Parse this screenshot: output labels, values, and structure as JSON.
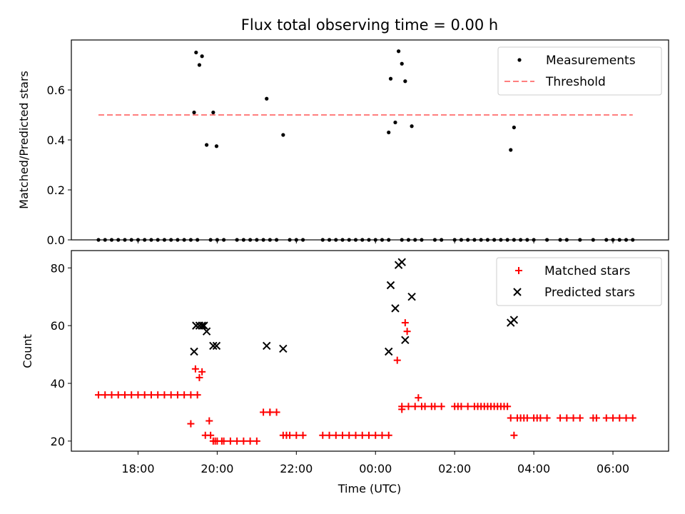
{
  "colors": {
    "measurements": "#000000",
    "threshold": "#ff7f7f",
    "matched": "#ff0000",
    "predicted": "#000000"
  },
  "chart_data": [
    {
      "type": "scatter",
      "title": "Flux total observing time = 0.00 h",
      "xlabel": "",
      "ylabel": "Matched/Predicted stars",
      "xlim": [
        "17:00",
        "06:40"
      ],
      "ylim": [
        0,
        0.8
      ],
      "yticks": [
        "0.0",
        "0.2",
        "0.4",
        "0.6"
      ],
      "grid": false,
      "legend": "upper right",
      "legend_labels": [
        "Measurements",
        "Threshold"
      ],
      "threshold": {
        "name": "Threshold",
        "x": [
          "17:00",
          "06:30"
        ],
        "y": 0.5
      },
      "series": [
        {
          "name": "Measurements",
          "marker": "dot",
          "x": [
            "17:00",
            "17:10",
            "17:20",
            "17:30",
            "17:40",
            "17:50",
            "18:00",
            "18:10",
            "18:20",
            "18:30",
            "18:40",
            "18:50",
            "19:00",
            "19:10",
            "19:20",
            "19:30",
            "19:50",
            "20:00",
            "20:10",
            "20:30",
            "20:40",
            "20:50",
            "21:00",
            "21:10",
            "21:20",
            "21:30",
            "21:50",
            "22:00",
            "22:10",
            "22:40",
            "22:50",
            "23:00",
            "23:10",
            "23:20",
            "23:30",
            "23:40",
            "23:50",
            "00:00",
            "00:10",
            "00:20",
            "00:40",
            "00:50",
            "01:00",
            "01:10",
            "01:30",
            "01:40",
            "02:00",
            "02:10",
            "02:20",
            "02:30",
            "02:40",
            "02:50",
            "03:00",
            "03:10",
            "03:20",
            "03:30",
            "03:40",
            "03:50",
            "04:00",
            "04:20",
            "04:40",
            "04:50",
            "05:10",
            "05:30",
            "05:50",
            "06:00",
            "06:10",
            "06:20",
            "06:30",
            "19:25",
            "19:28",
            "19:33",
            "19:37",
            "19:44",
            "19:54",
            "19:59",
            "21:15",
            "21:40",
            "00:20",
            "00:23",
            "00:30",
            "00:35",
            "00:40",
            "00:45",
            "00:55",
            "03:25",
            "03:30"
          ],
          "y": [
            0,
            0,
            0,
            0,
            0,
            0,
            0,
            0,
            0,
            0,
            0,
            0,
            0,
            0,
            0,
            0,
            0,
            0,
            0,
            0,
            0,
            0,
            0,
            0,
            0,
            0,
            0,
            0,
            0,
            0,
            0,
            0,
            0,
            0,
            0,
            0,
            0,
            0,
            0,
            0,
            0,
            0,
            0,
            0,
            0,
            0,
            0,
            0,
            0,
            0,
            0,
            0,
            0,
            0,
            0,
            0,
            0,
            0,
            0,
            0,
            0,
            0,
            0,
            0,
            0,
            0,
            0,
            0,
            0,
            0.51,
            0.75,
            0.7,
            0.735,
            0.38,
            0.51,
            0.375,
            0.565,
            0.42,
            0.43,
            0.645,
            0.47,
            0.755,
            0.705,
            0.635,
            0.455,
            0.36,
            0.45
          ]
        }
      ]
    },
    {
      "type": "scatter",
      "title": "",
      "xlabel": "Time (UTC)",
      "ylabel": "Count",
      "xlim": [
        "17:00",
        "06:40"
      ],
      "ylim": [
        16.5,
        86
      ],
      "yticks": [
        "20",
        "40",
        "60",
        "80"
      ],
      "xticks": [
        "18:00",
        "20:00",
        "22:00",
        "00:00",
        "02:00",
        "04:00",
        "06:00"
      ],
      "grid": false,
      "legend": "upper right",
      "legend_labels": [
        "Matched stars",
        "Predicted stars"
      ],
      "series": [
        {
          "name": "Matched stars",
          "marker": "plus",
          "x": [
            "17:00",
            "17:10",
            "17:20",
            "17:30",
            "17:40",
            "17:50",
            "18:00",
            "18:10",
            "18:20",
            "18:30",
            "18:40",
            "18:50",
            "19:00",
            "19:10",
            "19:20",
            "19:30",
            "19:50",
            "20:00",
            "20:10",
            "20:30",
            "20:40",
            "20:50",
            "21:00",
            "21:10",
            "21:20",
            "21:30",
            "21:50",
            "22:00",
            "22:10",
            "22:40",
            "22:50",
            "23:00",
            "23:10",
            "23:20",
            "23:30",
            "23:40",
            "23:50",
            "00:00",
            "00:10",
            "00:20",
            "00:40",
            "00:50",
            "01:00",
            "01:10",
            "01:30",
            "01:40",
            "02:00",
            "02:10",
            "02:20",
            "02:30",
            "02:40",
            "02:50",
            "03:00",
            "03:10",
            "03:20",
            "03:30",
            "03:40",
            "03:50",
            "04:00",
            "04:20",
            "04:40",
            "04:50",
            "05:10",
            "05:30",
            "05:50",
            "06:00",
            "06:10",
            "06:20",
            "06:30",
            "19:20",
            "19:27",
            "19:33",
            "19:37",
            "19:42",
            "19:48",
            "19:54",
            "19:57",
            "20:07",
            "20:20",
            "21:20",
            "21:40",
            "21:45",
            "00:33",
            "00:40",
            "00:45",
            "00:48",
            "01:05",
            "01:15",
            "01:25",
            "02:05",
            "02:35",
            "02:45",
            "02:55",
            "03:05",
            "03:15",
            "03:25",
            "03:35",
            "03:45",
            "04:05",
            "04:10",
            "05:00",
            "05:35"
          ],
          "y": [
            36,
            36,
            36,
            36,
            36,
            36,
            36,
            36,
            36,
            36,
            36,
            36,
            36,
            36,
            36,
            36,
            22,
            20,
            20,
            20,
            20,
            20,
            20,
            30,
            30,
            30,
            22,
            22,
            22,
            22,
            22,
            22,
            22,
            22,
            22,
            22,
            22,
            22,
            22,
            22,
            32,
            32,
            32,
            32,
            32,
            32,
            32,
            32,
            32,
            32,
            32,
            32,
            32,
            32,
            32,
            22,
            28,
            28,
            28,
            28,
            28,
            28,
            28,
            28,
            28,
            28,
            28,
            28,
            28,
            26,
            45,
            42,
            44,
            22,
            27,
            20,
            20,
            20,
            20,
            30,
            22,
            22,
            48,
            31,
            61,
            58,
            35,
            32,
            32,
            32,
            32,
            32,
            32,
            32,
            32,
            28,
            28,
            28,
            28,
            28,
            28,
            28
          ]
        },
        {
          "name": "Predicted stars",
          "marker": "x",
          "x": [
            "19:25",
            "19:28",
            "19:33",
            "19:37",
            "19:40",
            "19:44",
            "19:54",
            "19:59",
            "21:15",
            "21:40",
            "00:20",
            "00:23",
            "00:30",
            "00:35",
            "00:40",
            "00:45",
            "00:55",
            "03:25",
            "03:30"
          ],
          "y": [
            51,
            60,
            60,
            60,
            60,
            58,
            53,
            53,
            53,
            52,
            51,
            74,
            66,
            81,
            82,
            55,
            70,
            61,
            62
          ]
        }
      ]
    }
  ]
}
